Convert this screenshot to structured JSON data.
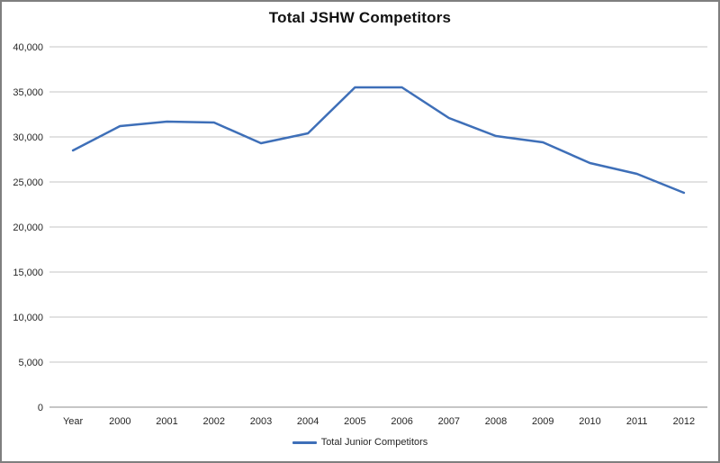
{
  "title": "Total JSHW Competitors",
  "legend": {
    "items": [
      {
        "label": "Total Junior Competitors",
        "color": "#3E6FB8"
      }
    ]
  },
  "chart_data": {
    "type": "line",
    "title": "Total JSHW Competitors",
    "categories": [
      "Year",
      "2000",
      "2001",
      "2002",
      "2003",
      "2004",
      "2005",
      "2006",
      "2007",
      "2008",
      "2009",
      "2010",
      "2011",
      "2012"
    ],
    "series": [
      {
        "name": "Total Junior Competitors",
        "color": "#3E6FB8",
        "values": [
          28500,
          31200,
          31700,
          31600,
          29300,
          30400,
          35500,
          35500,
          32100,
          30100,
          29400,
          27100,
          25900,
          23800
        ]
      }
    ],
    "xlabel": "",
    "ylabel": "",
    "ylim": [
      0,
      40000
    ],
    "ytick_step": 5000,
    "ytick_labels": [
      "0",
      "5,000",
      "10,000",
      "15,000",
      "20,000",
      "25,000",
      "30,000",
      "35,000",
      "40,000"
    ],
    "grid": true,
    "legend_position": "bottom",
    "colors": {
      "gridline": "#C6C6C6",
      "axis_line": "#8C8C8C",
      "tick_text": "#262626",
      "title_text": "#111111"
    }
  }
}
